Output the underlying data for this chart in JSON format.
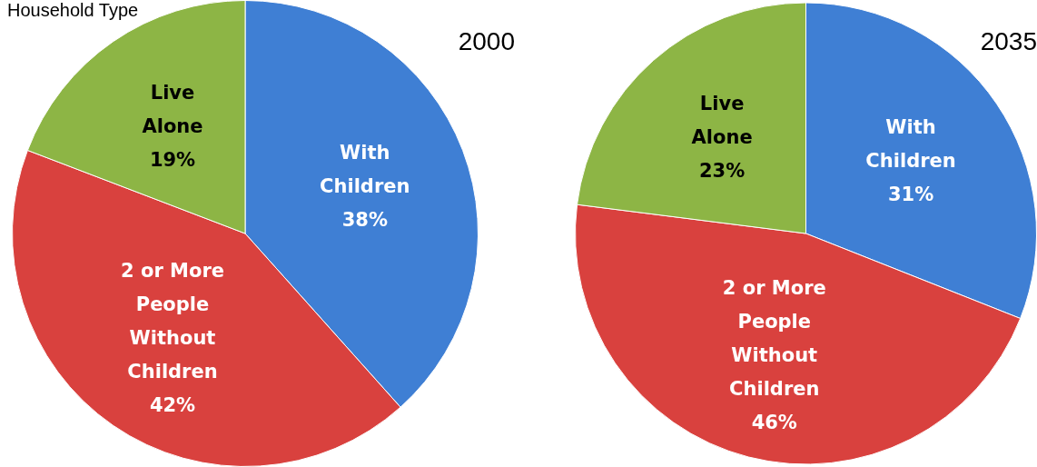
{
  "chart_data": [
    {
      "type": "pie",
      "title": "2000",
      "annotations": [
        "Household Type"
      ],
      "categories": [
        "With Children",
        "2 or More People Without Children",
        "Live Alone"
      ],
      "values": [
        38,
        42,
        19
      ],
      "value_labels": [
        "38%",
        "42%",
        "19%"
      ],
      "colors": [
        "#3f7fd4",
        "#d9413e",
        "#8db545"
      ],
      "legend": false
    },
    {
      "type": "pie",
      "title": "2035",
      "categories": [
        "With Children",
        "2 or More People Without Children",
        "Live Alone"
      ],
      "values": [
        31,
        46,
        23
      ],
      "value_labels": [
        "31%",
        "46%",
        "23%"
      ],
      "colors": [
        "#3f7fd4",
        "#d9413e",
        "#8db545"
      ],
      "legend": false
    }
  ]
}
